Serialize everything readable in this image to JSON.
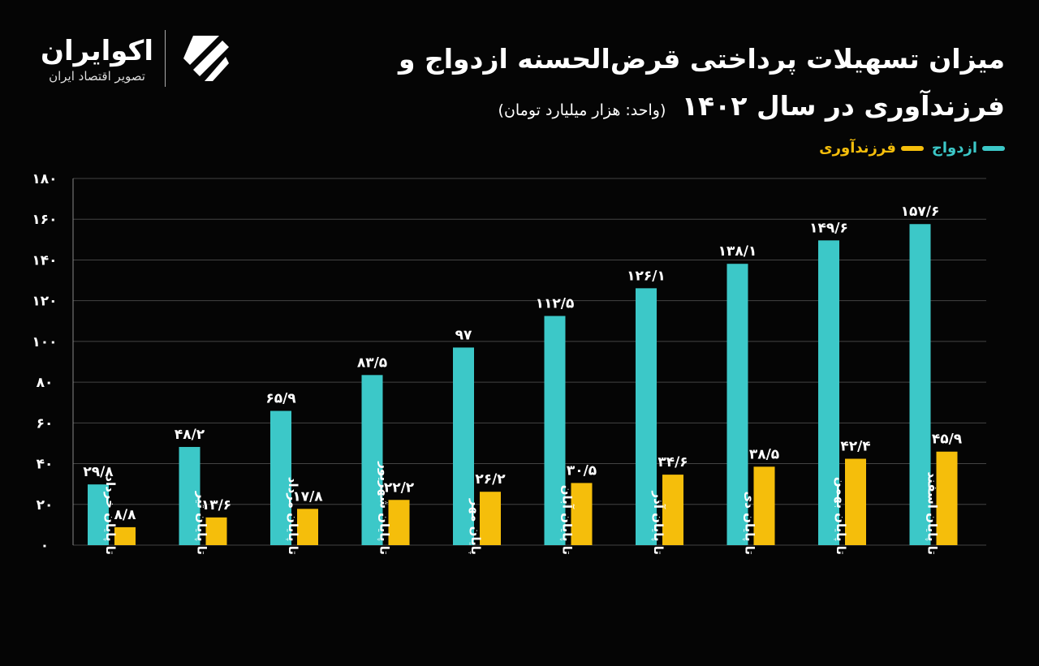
{
  "logo": {
    "name": "اکوایران",
    "tagline": "تصویر اقتصاد ایران"
  },
  "colors": {
    "background": "#050505",
    "marriage": "#3cc8c8",
    "childbearing": "#f5be0b",
    "grid": "#444444"
  },
  "chart_data": {
    "type": "bar",
    "title": "میزان تسهیلات پرداختی قرض‌الحسنه ازدواج و فرزندآوری در سال ۱۴۰۲",
    "subtitle": "(واحد: هزار میلیارد تومان)",
    "xlabel": "",
    "ylabel": "",
    "ylim": [
      0,
      180
    ],
    "yticks": [
      0,
      20,
      40,
      60,
      80,
      100,
      120,
      140,
      160,
      180
    ],
    "ytick_labels": [
      "۰",
      "۲۰",
      "۴۰",
      "۶۰",
      "۸۰",
      "۱۰۰",
      "۱۲۰",
      "۱۴۰",
      "۱۶۰",
      "۱۸۰"
    ],
    "grid": true,
    "legend_position": "top-right",
    "categories": [
      "تا پایان خرداد",
      "تا پایان تیر",
      "تا پایان مرداد",
      "تا پایان شهریور",
      "پایان مهر",
      "تا پایان آبان",
      "تا پایان آذر",
      "تا پایان دی",
      "تا پایان بهمن",
      "تا پایان اسفند"
    ],
    "series": [
      {
        "name": "ازدواج",
        "values": [
          29.8,
          48.2,
          65.9,
          83.5,
          97,
          112.5,
          126.1,
          138.1,
          149.6,
          157.6
        ],
        "labels": [
          "۲۹/۸",
          "۴۸/۲",
          "۶۵/۹",
          "۸۳/۵",
          "۹۷",
          "۱۱۲/۵",
          "۱۲۶/۱",
          "۱۳۸/۱",
          "۱۴۹/۶",
          "۱۵۷/۶"
        ]
      },
      {
        "name": "فرزندآوری",
        "values": [
          8.8,
          13.6,
          17.8,
          22.2,
          26.2,
          30.5,
          34.6,
          38.5,
          42.4,
          45.9
        ],
        "labels": [
          "۸/۸",
          "۱۳/۶",
          "۱۷/۸",
          "۲۲/۲",
          "۲۶/۲",
          "۳۰/۵",
          "۳۴/۶",
          "۳۸/۵",
          "۴۲/۴",
          "۴۵/۹"
        ]
      }
    ]
  }
}
